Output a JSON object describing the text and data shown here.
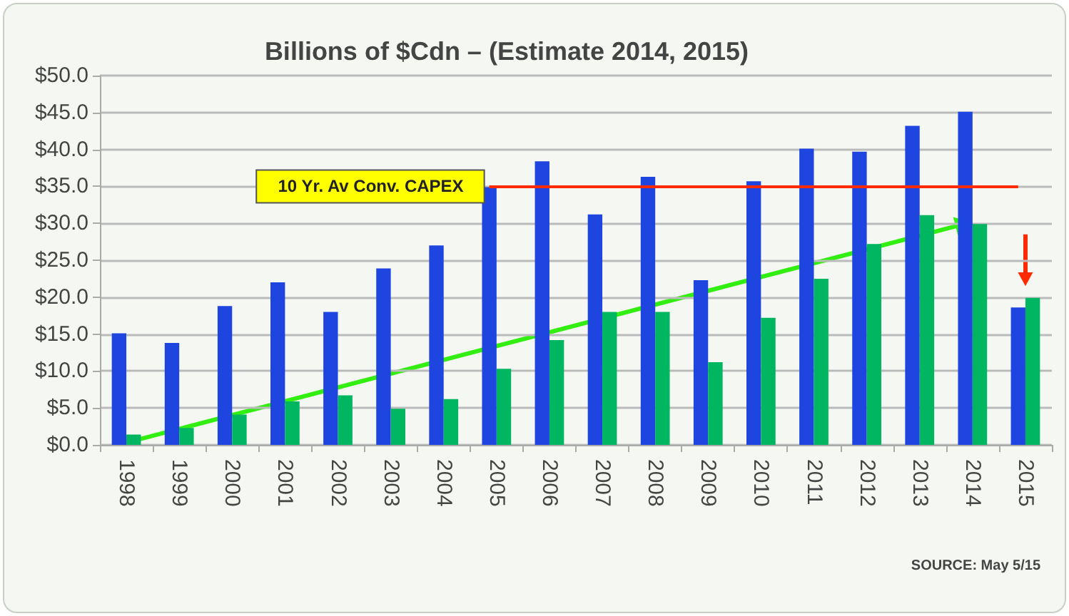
{
  "chart_data": {
    "type": "bar",
    "title": "Billions of $Cdn – (Estimate 2014, 2015)",
    "categories": [
      "1998",
      "1999",
      "2000",
      "2001",
      "2002",
      "2003",
      "2004",
      "2005",
      "2006",
      "2007",
      "2008",
      "2009",
      "2010",
      "2011",
      "2012",
      "2013",
      "2014",
      "2015"
    ],
    "series": [
      {
        "color": "#1f45e0",
        "values": [
          15.1,
          13.8,
          18.8,
          22.0,
          18.0,
          23.9,
          27.0,
          34.9,
          38.4,
          31.2,
          36.3,
          22.3,
          35.7,
          40.1,
          39.7,
          43.2,
          45.1,
          18.6
        ]
      },
      {
        "color": "#00b660",
        "values": [
          1.4,
          2.3,
          4.1,
          5.9,
          6.7,
          4.9,
          6.2,
          10.3,
          14.2,
          18.0,
          18.0,
          11.2,
          17.2,
          22.5,
          27.2,
          31.1,
          29.9,
          19.9
        ]
      }
    ],
    "ylim": [
      0,
      50
    ],
    "yticks": [
      {
        "value": 0,
        "label": "$0.0"
      },
      {
        "value": 5,
        "label": "$5.0"
      },
      {
        "value": 10,
        "label": "$10.0"
      },
      {
        "value": 15,
        "label": "$15.0"
      },
      {
        "value": 20,
        "label": "$20.0"
      },
      {
        "value": 25,
        "label": "$25.0"
      },
      {
        "value": 30,
        "label": "$30.0"
      },
      {
        "value": 35,
        "label": "$35.0"
      },
      {
        "value": 40,
        "label": "$40.0"
      },
      {
        "value": 45,
        "label": "$45.0"
      },
      {
        "value": 50,
        "label": "$50.0"
      }
    ],
    "grid": "y",
    "ref_lines": [
      {
        "axis": "y",
        "value": 35,
        "label": "10 Yr. Av Conv. CAPEX",
        "color": "#ff2a00"
      }
    ],
    "annotations": [
      "SOURCE: May 5/15"
    ]
  }
}
